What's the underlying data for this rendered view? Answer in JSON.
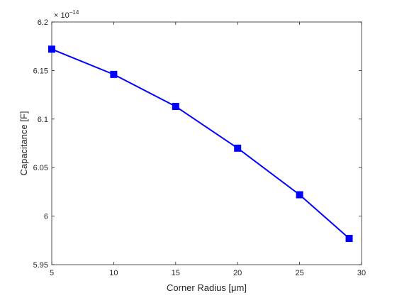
{
  "chart_data": {
    "type": "line",
    "title": "",
    "xlabel": "Corner Radius [μm]",
    "ylabel": "Capacitance [F]",
    "exponent_label": "× 10^-14",
    "xlim": [
      5,
      30
    ],
    "ylim": [
      5.95,
      6.2
    ],
    "x_ticks": [
      "5",
      "10",
      "15",
      "20",
      "25",
      "30"
    ],
    "y_ticks": [
      "5.95",
      "6",
      "6.05",
      "6.1",
      "6.15",
      "6.2"
    ],
    "grid": false,
    "legend": "none",
    "series": [
      {
        "color": "#0000ff",
        "marker": "square",
        "x": [
          5,
          10,
          15,
          20,
          25,
          29
        ],
        "y": [
          6.172,
          6.146,
          6.113,
          6.07,
          6.022,
          5.977
        ]
      }
    ]
  }
}
